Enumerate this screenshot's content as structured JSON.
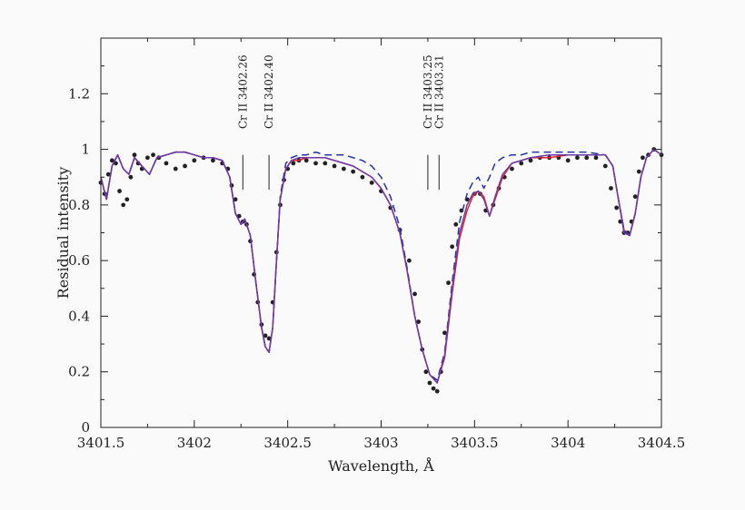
{
  "chart_data": {
    "type": "line",
    "title": "",
    "xlabel": "Wavelength, Å",
    "ylabel": "Residual intensity",
    "xlim": [
      3401.5,
      3404.5
    ],
    "ylim": [
      0,
      1.4
    ],
    "x_ticks": [
      3401.5,
      3402,
      3402.5,
      3403,
      3403.5,
      3404,
      3404.5
    ],
    "x_tick_labels": [
      "3401.5",
      "3402",
      "3402.5",
      "3403",
      "3403.5",
      "3404",
      "3404.5"
    ],
    "y_ticks": [
      0,
      0.2,
      0.4,
      0.6,
      0.8,
      1,
      1.2
    ],
    "y_tick_labels": [
      "0",
      "0.2",
      "0.4",
      "0.6",
      "0.8",
      "1",
      "1.2"
    ],
    "line_identifications": [
      {
        "label": "Cr II 3402.26",
        "x": 3402.26
      },
      {
        "label": "Cr II 3402.40",
        "x": 3402.4
      },
      {
        "label": "Cr II 3403.25",
        "x": 3403.25
      },
      {
        "label": "Cr II 3403.31",
        "x": 3403.31
      }
    ],
    "series": [
      {
        "style": "points",
        "color": "#222222",
        "x": [
          3401.5,
          3401.52,
          3401.54,
          3401.56,
          3401.58,
          3401.6,
          3401.62,
          3401.64,
          3401.66,
          3401.68,
          3401.7,
          3401.72,
          3401.75,
          3401.78,
          3401.81,
          3401.85,
          3401.9,
          3401.95,
          3402.0,
          3402.05,
          3402.1,
          3402.15,
          3402.18,
          3402.2,
          3402.22,
          3402.24,
          3402.26,
          3402.28,
          3402.3,
          3402.32,
          3402.34,
          3402.36,
          3402.38,
          3402.4,
          3402.42,
          3402.44,
          3402.46,
          3402.48,
          3402.5,
          3402.53,
          3402.56,
          3402.6,
          3402.65,
          3402.7,
          3402.75,
          3402.8,
          3402.85,
          3402.9,
          3402.95,
          3403.0,
          3403.05,
          3403.1,
          3403.15,
          3403.18,
          3403.2,
          3403.22,
          3403.24,
          3403.26,
          3403.28,
          3403.3,
          3403.32,
          3403.34,
          3403.36,
          3403.38,
          3403.4,
          3403.43,
          3403.46,
          3403.5,
          3403.53,
          3403.56,
          3403.6,
          3403.63,
          3403.66,
          3403.7,
          3403.75,
          3403.8,
          3403.85,
          3403.9,
          3403.95,
          3404.0,
          3404.05,
          3404.1,
          3404.15,
          3404.2,
          3404.23,
          3404.26,
          3404.28,
          3404.3,
          3404.32,
          3404.34,
          3404.36,
          3404.38,
          3404.4,
          3404.43,
          3404.46,
          3404.5
        ],
        "y": [
          0.88,
          0.84,
          0.91,
          0.96,
          0.95,
          0.85,
          0.8,
          0.82,
          0.9,
          0.98,
          0.95,
          0.93,
          0.97,
          0.98,
          0.97,
          0.95,
          0.93,
          0.94,
          0.96,
          0.97,
          0.96,
          0.95,
          0.93,
          0.87,
          0.82,
          0.76,
          0.74,
          0.73,
          0.67,
          0.55,
          0.45,
          0.37,
          0.33,
          0.32,
          0.45,
          0.63,
          0.8,
          0.89,
          0.93,
          0.95,
          0.96,
          0.96,
          0.95,
          0.95,
          0.94,
          0.93,
          0.92,
          0.9,
          0.88,
          0.85,
          0.79,
          0.71,
          0.6,
          0.48,
          0.38,
          0.28,
          0.2,
          0.16,
          0.14,
          0.13,
          0.2,
          0.34,
          0.52,
          0.65,
          0.73,
          0.78,
          0.82,
          0.84,
          0.84,
          0.78,
          0.8,
          0.86,
          0.9,
          0.93,
          0.95,
          0.96,
          0.97,
          0.97,
          0.97,
          0.96,
          0.97,
          0.97,
          0.97,
          0.94,
          0.86,
          0.79,
          0.74,
          0.7,
          0.7,
          0.74,
          0.83,
          0.92,
          0.97,
          0.98,
          1.0,
          0.98
        ]
      },
      {
        "style": "solid",
        "color": "#e0282b",
        "x": [
          3401.5,
          3401.53,
          3401.56,
          3401.59,
          3401.62,
          3401.65,
          3401.68,
          3401.72,
          3401.76,
          3401.8,
          3401.85,
          3401.9,
          3401.95,
          3402.0,
          3402.05,
          3402.1,
          3402.15,
          3402.19,
          3402.22,
          3402.25,
          3402.27,
          3402.3,
          3402.33,
          3402.36,
          3402.38,
          3402.4,
          3402.42,
          3402.44,
          3402.46,
          3402.49,
          3402.52,
          3402.56,
          3402.6,
          3402.65,
          3402.7,
          3402.75,
          3402.8,
          3402.85,
          3402.9,
          3402.95,
          3403.0,
          3403.05,
          3403.1,
          3403.14,
          3403.18,
          3403.22,
          3403.26,
          3403.3,
          3403.34,
          3403.38,
          3403.42,
          3403.46,
          3403.49,
          3403.52,
          3403.55,
          3403.58,
          3403.61,
          3403.65,
          3403.7,
          3403.75,
          3403.8,
          3403.9,
          3404.0,
          3404.1,
          3404.2,
          3404.24,
          3404.27,
          3404.3,
          3404.33,
          3404.36,
          3404.39,
          3404.42,
          3404.46,
          3404.5
        ],
        "y": [
          0.9,
          0.82,
          0.94,
          0.98,
          0.93,
          0.91,
          0.97,
          0.94,
          0.91,
          0.97,
          0.98,
          0.99,
          0.99,
          0.98,
          0.97,
          0.97,
          0.96,
          0.9,
          0.77,
          0.73,
          0.75,
          0.69,
          0.52,
          0.36,
          0.29,
          0.27,
          0.36,
          0.6,
          0.82,
          0.93,
          0.96,
          0.96,
          0.97,
          0.97,
          0.97,
          0.96,
          0.95,
          0.94,
          0.92,
          0.9,
          0.86,
          0.8,
          0.7,
          0.56,
          0.4,
          0.28,
          0.19,
          0.16,
          0.25,
          0.48,
          0.68,
          0.78,
          0.83,
          0.85,
          0.83,
          0.76,
          0.82,
          0.9,
          0.95,
          0.96,
          0.97,
          0.97,
          0.98,
          0.98,
          0.98,
          0.94,
          0.82,
          0.71,
          0.69,
          0.77,
          0.9,
          0.97,
          1.0,
          0.98
        ]
      },
      {
        "style": "dashed",
        "color": "#2433a6",
        "x": [
          3401.5,
          3401.53,
          3401.56,
          3401.59,
          3401.62,
          3401.65,
          3401.68,
          3401.72,
          3401.76,
          3401.8,
          3401.85,
          3401.9,
          3401.95,
          3402.0,
          3402.05,
          3402.1,
          3402.15,
          3402.19,
          3402.22,
          3402.25,
          3402.27,
          3402.3,
          3402.33,
          3402.36,
          3402.38,
          3402.4,
          3402.42,
          3402.44,
          3402.46,
          3402.49,
          3402.52,
          3402.56,
          3402.6,
          3402.65,
          3402.7,
          3402.75,
          3402.8,
          3402.85,
          3402.9,
          3402.95,
          3403.0,
          3403.05,
          3403.1,
          3403.14,
          3403.18,
          3403.22,
          3403.26,
          3403.3,
          3403.34,
          3403.38,
          3403.42,
          3403.46,
          3403.49,
          3403.52,
          3403.55,
          3403.58,
          3403.61,
          3403.65,
          3403.7,
          3403.75,
          3403.8,
          3403.9,
          3404.0,
          3404.1,
          3404.2,
          3404.24,
          3404.27,
          3404.3,
          3404.33,
          3404.36,
          3404.39,
          3404.42,
          3404.46,
          3404.5
        ],
        "y": [
          0.9,
          0.82,
          0.94,
          0.98,
          0.93,
          0.91,
          0.97,
          0.94,
          0.91,
          0.97,
          0.98,
          0.99,
          0.99,
          0.98,
          0.97,
          0.97,
          0.96,
          0.9,
          0.77,
          0.73,
          0.75,
          0.69,
          0.52,
          0.36,
          0.29,
          0.27,
          0.36,
          0.6,
          0.83,
          0.95,
          0.97,
          0.98,
          0.98,
          0.99,
          0.98,
          0.98,
          0.98,
          0.97,
          0.96,
          0.94,
          0.9,
          0.83,
          0.72,
          0.57,
          0.4,
          0.28,
          0.19,
          0.17,
          0.27,
          0.52,
          0.74,
          0.84,
          0.88,
          0.9,
          0.86,
          0.9,
          0.95,
          0.97,
          0.98,
          0.98,
          0.99,
          0.99,
          0.99,
          0.99,
          0.98,
          0.94,
          0.82,
          0.71,
          0.69,
          0.77,
          0.9,
          0.97,
          1.0,
          0.98
        ]
      },
      {
        "style": "solid",
        "color": "#6b3aa8",
        "x": [
          3401.5,
          3401.53,
          3401.56,
          3401.59,
          3401.62,
          3401.65,
          3401.68,
          3401.72,
          3401.76,
          3401.8,
          3401.85,
          3401.9,
          3401.95,
          3402.0,
          3402.05,
          3402.1,
          3402.15,
          3402.19,
          3402.22,
          3402.25,
          3402.27,
          3402.3,
          3402.33,
          3402.36,
          3402.38,
          3402.4,
          3402.42,
          3402.44,
          3402.46,
          3402.49,
          3402.52,
          3402.56,
          3402.6,
          3402.65,
          3402.7,
          3402.75,
          3402.8,
          3402.85,
          3402.9,
          3402.95,
          3403.0,
          3403.05,
          3403.1,
          3403.14,
          3403.18,
          3403.22,
          3403.26,
          3403.3,
          3403.34,
          3403.38,
          3403.42,
          3403.46,
          3403.49,
          3403.52,
          3403.55,
          3403.58,
          3403.61,
          3403.65,
          3403.7,
          3403.75,
          3403.8,
          3403.9,
          3404.0,
          3404.1,
          3404.2,
          3404.24,
          3404.27,
          3404.3,
          3404.33,
          3404.36,
          3404.39,
          3404.42,
          3404.46,
          3404.5
        ],
        "y": [
          0.9,
          0.82,
          0.94,
          0.98,
          0.93,
          0.91,
          0.97,
          0.94,
          0.91,
          0.97,
          0.98,
          0.99,
          0.99,
          0.98,
          0.97,
          0.97,
          0.96,
          0.9,
          0.77,
          0.73,
          0.75,
          0.69,
          0.52,
          0.36,
          0.29,
          0.27,
          0.36,
          0.6,
          0.82,
          0.93,
          0.96,
          0.97,
          0.97,
          0.97,
          0.97,
          0.96,
          0.95,
          0.94,
          0.92,
          0.9,
          0.86,
          0.8,
          0.7,
          0.56,
          0.4,
          0.28,
          0.19,
          0.16,
          0.26,
          0.5,
          0.7,
          0.8,
          0.84,
          0.85,
          0.82,
          0.76,
          0.83,
          0.91,
          0.95,
          0.96,
          0.97,
          0.98,
          0.98,
          0.98,
          0.98,
          0.94,
          0.82,
          0.7,
          0.69,
          0.77,
          0.9,
          0.97,
          1.0,
          0.98
        ]
      }
    ]
  }
}
